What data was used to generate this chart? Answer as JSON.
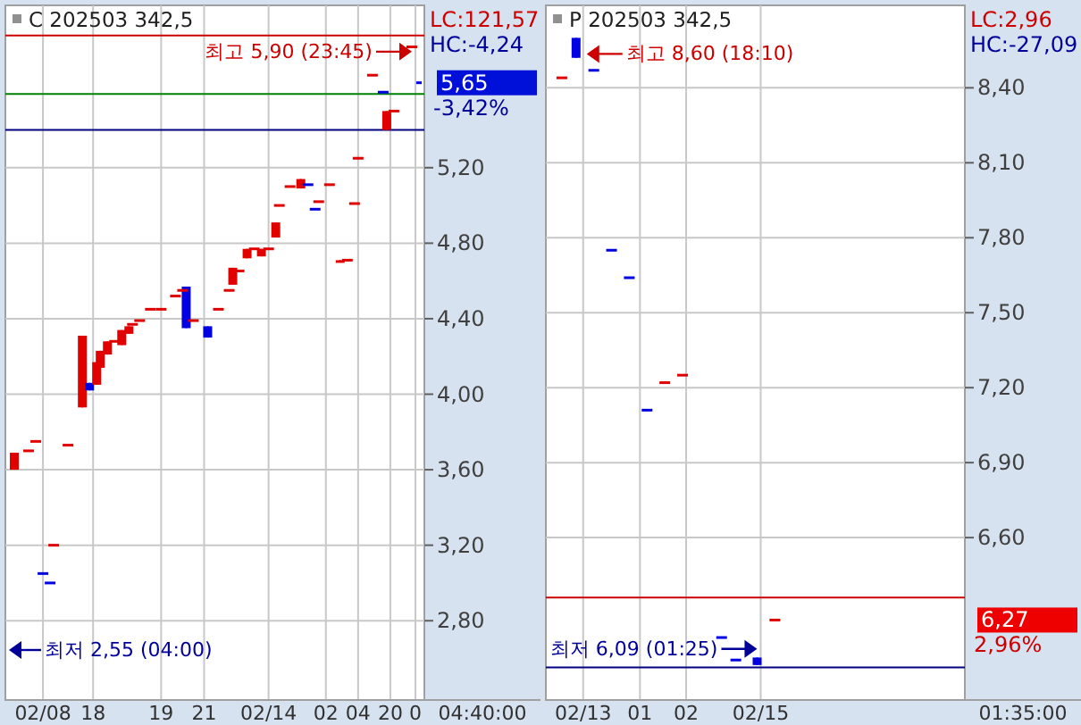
{
  "chart_data": [
    {
      "type": "candlestick",
      "title": "C 202503 342,5",
      "grid": true,
      "xlabel": "04:40:00",
      "categories": [
        null,
        null,
        null,
        null,
        null,
        null,
        null,
        null,
        null,
        null,
        "02/08",
        null,
        null,
        null,
        null,
        null,
        null,
        null,
        null,
        null,
        null,
        null,
        null,
        null,
        "18",
        null,
        null,
        null,
        null,
        null,
        null,
        null,
        null,
        null,
        null,
        null,
        null,
        null,
        null,
        null,
        null,
        null,
        null,
        "19",
        null,
        null,
        null,
        null,
        null,
        null,
        null,
        null,
        null,
        null,
        null,
        "21",
        null,
        null,
        null,
        null,
        null,
        null,
        null,
        null,
        null,
        null,
        null,
        null,
        null,
        null,
        null,
        null,
        null,
        "02/14",
        null,
        null,
        null,
        null,
        null,
        null,
        null,
        null,
        null,
        null,
        null,
        null,
        null,
        null,
        null,
        "02",
        null,
        null,
        null,
        null,
        null,
        null,
        null,
        null,
        "04",
        null,
        null,
        null,
        null,
        null,
        null,
        null,
        null,
        "20",
        null,
        null,
        null,
        null,
        null,
        null,
        "0",
        null,
        null
      ],
      "ohlc": [
        null,
        null,
        [
          3.6,
          3.69,
          3.6,
          3.69
        ],
        null,
        null,
        null,
        [
          3.7,
          3.7,
          3.7,
          3.7
        ],
        null,
        [
          3.75,
          3.75,
          3.75,
          3.75
        ],
        null,
        [
          3.05,
          3.05,
          3.05,
          3.05
        ],
        null,
        [
          3.0,
          3.0,
          3.0,
          3.0
        ],
        [
          3.2,
          3.2,
          3.2,
          3.2
        ],
        null,
        null,
        null,
        [
          3.73,
          3.73,
          3.73,
          3.73
        ],
        null,
        null,
        null,
        [
          3.93,
          4.31,
          3.93,
          4.31
        ],
        null,
        [
          4.06,
          4.06,
          4.02,
          4.02
        ],
        null,
        [
          4.05,
          4.17,
          4.05,
          4.17
        ],
        [
          4.14,
          4.23,
          4.14,
          4.23
        ],
        null,
        [
          4.21,
          4.28,
          4.21,
          4.28
        ],
        null,
        [
          4.28,
          4.28,
          4.28,
          4.28
        ],
        null,
        [
          4.26,
          4.34,
          4.26,
          4.34
        ],
        null,
        [
          4.32,
          4.36,
          4.32,
          4.36
        ],
        [
          4.37,
          4.37,
          4.37,
          4.37
        ],
        null,
        [
          4.39,
          4.39,
          4.39,
          4.39
        ],
        null,
        null,
        [
          4.45,
          4.45,
          4.45,
          4.45
        ],
        null,
        null,
        [
          4.45,
          4.45,
          4.45,
          4.45
        ],
        null,
        null,
        null,
        [
          4.52,
          4.52,
          4.52,
          4.52
        ],
        null,
        [
          4.55,
          4.55,
          4.55,
          4.55
        ],
        [
          4.57,
          4.57,
          4.35,
          4.35
        ],
        null,
        [
          4.39,
          4.39,
          4.39,
          4.39
        ],
        null,
        null,
        null,
        [
          4.36,
          4.36,
          4.3,
          4.3
        ],
        null,
        null,
        [
          4.45,
          4.45,
          4.45,
          4.45
        ],
        null,
        null,
        [
          4.55,
          4.55,
          4.55,
          4.55
        ],
        [
          4.58,
          4.67,
          4.58,
          4.67
        ],
        null,
        [
          4.65,
          4.66,
          4.65,
          4.66
        ],
        null,
        [
          4.72,
          4.77,
          4.72,
          4.77
        ],
        null,
        [
          4.77,
          4.77,
          4.77,
          4.77
        ],
        null,
        [
          4.73,
          4.77,
          4.73,
          4.77
        ],
        null,
        [
          4.77,
          4.77,
          4.77,
          4.77
        ],
        null,
        [
          4.83,
          4.91,
          4.83,
          4.91
        ],
        [
          5.0,
          5.0,
          5.0,
          5.0
        ],
        null,
        null,
        [
          5.1,
          5.1,
          5.1,
          5.1
        ],
        null,
        null,
        [
          5.09,
          5.14,
          5.09,
          5.14
        ],
        null,
        [
          5.11,
          5.11,
          5.11,
          5.11
        ],
        null,
        [
          4.98,
          4.98,
          4.98,
          4.98
        ],
        [
          5.02,
          5.02,
          5.02,
          5.02
        ],
        null,
        null,
        [
          5.11,
          5.11,
          5.11,
          5.11
        ],
        null,
        null,
        [
          4.7,
          4.71,
          4.7,
          4.71
        ],
        null,
        [
          4.71,
          4.71,
          4.71,
          4.71
        ],
        null,
        [
          5.01,
          5.01,
          5.01,
          5.01
        ],
        [
          5.25,
          5.25,
          5.25,
          5.25
        ],
        null,
        null,
        null,
        [
          5.69,
          5.69,
          5.69,
          5.69
        ],
        null,
        null,
        [
          5.6,
          5.6,
          5.6,
          5.6
        ],
        [
          5.4,
          5.5,
          5.4,
          5.5
        ],
        null,
        [
          5.5,
          5.5,
          5.5,
          5.5
        ],
        null,
        null,
        null,
        null,
        [
          5.84,
          5.84,
          5.84,
          5.84
        ],
        null,
        [
          5.65,
          5.65,
          5.65,
          5.65
        ],
        null
      ],
      "ylim": [
        2.38,
        6.06
      ],
      "yticks": [
        {
          "value": 2.8,
          "label": "2,80"
        },
        {
          "value": 3.2,
          "label": "3,20"
        },
        {
          "value": 3.6,
          "label": "3,60"
        },
        {
          "value": 4.0,
          "label": "4,00"
        },
        {
          "value": 4.4,
          "label": "4,40"
        },
        {
          "value": 4.8,
          "label": "4,80"
        },
        {
          "value": 5.2,
          "label": "5,20"
        }
      ],
      "ref_lines": [
        {
          "axis": "y",
          "value": 5.9,
          "color": "#cc0000"
        },
        {
          "axis": "y",
          "value": 5.59,
          "color": "#008000"
        },
        {
          "axis": "y",
          "value": 5.4,
          "color": "#000080"
        }
      ],
      "annotations": [
        "LC:121,57",
        "HC:-4,24",
        "5,65",
        "-3,42%",
        {
          "text": "최고 5,90 (23:45)",
          "x": "0",
          "y": 5.9
        },
        "최저 2,55 (04:00)"
      ]
    },
    {
      "type": "candlestick",
      "title": "P 202503 342,5",
      "grid": true,
      "xlabel": "01:35:00",
      "categories": [
        null,
        null,
        null,
        null,
        null,
        null,
        null,
        null,
        null,
        null,
        "02/13",
        null,
        null,
        null,
        null,
        null,
        null,
        null,
        null,
        null,
        null,
        null,
        null,
        null,
        null,
        null,
        "01",
        null,
        null,
        null,
        null,
        null,
        null,
        null,
        null,
        null,
        null,
        null,
        null,
        "02",
        null,
        null,
        null,
        null,
        null,
        null,
        null,
        null,
        null,
        null,
        null,
        null,
        null,
        null,
        null,
        null,
        null,
        null,
        null,
        null,
        "02/15",
        null,
        null,
        null,
        null,
        null,
        null,
        null,
        null,
        null,
        null,
        null,
        null,
        null,
        null,
        null,
        null,
        null,
        null,
        null,
        null,
        null,
        null,
        null,
        null,
        null,
        null,
        null,
        null,
        null,
        null,
        null,
        null,
        null,
        null,
        null,
        null,
        null,
        null,
        null,
        null,
        null,
        null,
        null,
        null,
        null,
        null,
        null,
        null,
        null,
        null,
        null,
        null,
        null,
        null,
        null,
        null,
        null
      ],
      "ohlc": [
        null,
        null,
        null,
        null,
        [
          8.44,
          8.44,
          8.44,
          8.44
        ],
        null,
        null,
        null,
        [
          8.6,
          8.6,
          8.52,
          8.52
        ],
        null,
        null,
        null,
        null,
        [
          8.47,
          8.47,
          8.47,
          8.47
        ],
        null,
        null,
        null,
        null,
        [
          7.75,
          7.75,
          7.75,
          7.75
        ],
        null,
        null,
        null,
        null,
        [
          7.64,
          7.64,
          7.64,
          7.64
        ],
        null,
        null,
        null,
        null,
        [
          7.11,
          7.11,
          7.11,
          7.11
        ],
        null,
        null,
        null,
        null,
        [
          7.22,
          7.22,
          7.22,
          7.22
        ],
        null,
        null,
        null,
        null,
        [
          7.25,
          7.25,
          7.25,
          7.25
        ],
        null,
        null,
        null,
        null,
        null,
        null,
        null,
        null,
        null,
        null,
        [
          6.2,
          6.2,
          6.2,
          6.2
        ],
        null,
        null,
        null,
        [
          6.11,
          6.11,
          6.11,
          6.11
        ],
        null,
        null,
        null,
        null,
        null,
        [
          6.12,
          6.12,
          6.09,
          6.09
        ],
        null,
        null,
        null,
        null,
        [
          6.27,
          6.27,
          6.27,
          6.27
        ],
        null,
        null,
        null,
        null,
        null,
        null,
        null,
        null,
        null,
        null,
        null,
        null,
        null,
        null,
        null,
        null,
        null,
        null,
        null,
        null,
        null,
        null,
        null,
        null,
        null,
        null,
        null,
        null,
        null,
        null,
        null,
        null,
        null,
        null,
        null,
        null,
        null,
        null,
        null,
        null,
        null,
        null,
        null,
        null,
        null,
        null,
        null,
        null,
        null,
        null,
        null,
        null,
        null
      ],
      "ylim": [
        5.95,
        8.73
      ],
      "yticks": [
        {
          "value": 6.6,
          "label": "6,60"
        },
        {
          "value": 6.9,
          "label": "6,90"
        },
        {
          "value": 7.2,
          "label": "7,20"
        },
        {
          "value": 7.5,
          "label": "7,50"
        },
        {
          "value": 7.8,
          "label": "7,80"
        },
        {
          "value": 8.1,
          "label": "8,10"
        },
        {
          "value": 8.4,
          "label": "8,40"
        }
      ],
      "ref_lines": [
        {
          "axis": "y",
          "value": 6.36,
          "color": "#cc0000"
        },
        {
          "axis": "y",
          "value": 6.08,
          "color": "#000080"
        }
      ],
      "annotations": [
        "LC:2,96",
        "HC:-27,09",
        "6,27",
        "2,96%",
        {
          "text": "최고 8,60 (18:10)",
          "x": "02/13",
          "y": 8.6
        },
        {
          "text": "최저 6,09 (01:25)",
          "x": "02/15",
          "y": 6.09
        }
      ]
    }
  ]
}
